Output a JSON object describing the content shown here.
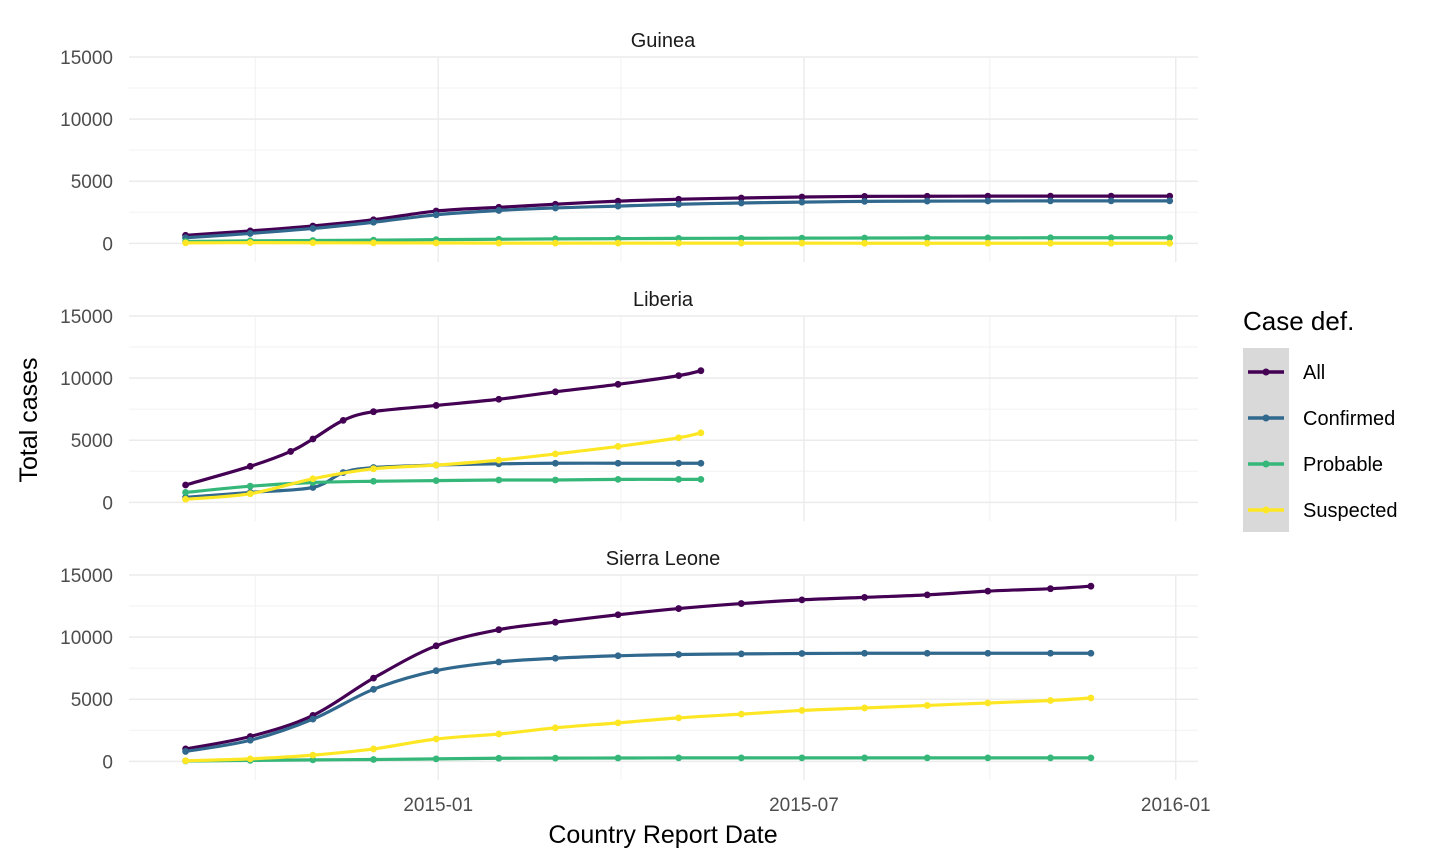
{
  "chart_data": {
    "type": "line",
    "xlabel": "Country Report Date",
    "ylabel": "Total cases",
    "xlim": [
      "2014-08-01",
      "2016-01-12"
    ],
    "x_ticks": [
      "2015-01-01",
      "2015-07-01",
      "2016-01-01"
    ],
    "x_tick_labels": [
      "2015-01",
      "2015-07",
      "2016-01"
    ],
    "ylim": [
      -1500,
      15000
    ],
    "y_ticks": [
      0,
      5000,
      10000,
      15000
    ],
    "y_tick_labels": [
      "0",
      "5000",
      "10000",
      "15000"
    ],
    "grid": true,
    "legend": {
      "title": "Case def.",
      "position": "right",
      "entries": [
        "All",
        "Confirmed",
        "Probable",
        "Suspected"
      ]
    },
    "series_colors": {
      "All": "#440154",
      "Confirmed": "#31688e",
      "Probable": "#35b779",
      "Suspected": "#fde725"
    },
    "legend_key_background": "#d9d9d9",
    "panels": [
      {
        "title": "Guinea",
        "series": [
          {
            "name": "All",
            "x": [
              "2014-08-29",
              "2014-09-30",
              "2014-10-31",
              "2014-11-30",
              "2014-12-31",
              "2015-01-31",
              "2015-02-28",
              "2015-03-31",
              "2015-04-30",
              "2015-05-31",
              "2015-06-30",
              "2015-07-31",
              "2015-08-31",
              "2015-09-30",
              "2015-10-31",
              "2015-11-30",
              "2015-12-29"
            ],
            "y": [
              650,
              1000,
              1400,
              1900,
              2600,
              2900,
              3150,
              3400,
              3550,
              3650,
              3730,
              3780,
              3790,
              3800,
              3800,
              3800,
              3800
            ]
          },
          {
            "name": "Confirmed",
            "x": [
              "2014-08-29",
              "2014-09-30",
              "2014-10-31",
              "2014-11-30",
              "2014-12-31",
              "2015-01-31",
              "2015-02-28",
              "2015-03-31",
              "2015-04-30",
              "2015-05-31",
              "2015-06-30",
              "2015-07-31",
              "2015-08-31",
              "2015-09-30",
              "2015-10-31",
              "2015-11-30",
              "2015-12-29"
            ],
            "y": [
              450,
              800,
              1200,
              1700,
              2300,
              2650,
              2850,
              3000,
              3150,
              3250,
              3320,
              3380,
              3400,
              3410,
              3420,
              3420,
              3420
            ]
          },
          {
            "name": "Probable",
            "x": [
              "2014-08-29",
              "2014-09-30",
              "2014-10-31",
              "2014-11-30",
              "2014-12-31",
              "2015-01-31",
              "2015-02-28",
              "2015-03-31",
              "2015-04-30",
              "2015-05-31",
              "2015-06-30",
              "2015-07-31",
              "2015-08-31",
              "2015-09-30",
              "2015-10-31",
              "2015-11-30",
              "2015-12-29"
            ],
            "y": [
              150,
              200,
              230,
              260,
              300,
              330,
              360,
              380,
              400,
              410,
              420,
              430,
              440,
              440,
              450,
              450,
              450
            ]
          },
          {
            "name": "Suspected",
            "x": [
              "2014-08-29",
              "2014-09-30",
              "2014-10-31",
              "2014-11-30",
              "2014-12-31",
              "2015-01-31",
              "2015-02-28",
              "2015-03-31",
              "2015-04-30",
              "2015-05-31",
              "2015-06-30",
              "2015-07-31",
              "2015-08-31",
              "2015-09-30",
              "2015-10-31",
              "2015-11-30",
              "2015-12-29"
            ],
            "y": [
              40,
              60,
              50,
              40,
              30,
              20,
              20,
              20,
              20,
              20,
              20,
              10,
              10,
              10,
              10,
              10,
              10
            ]
          }
        ]
      },
      {
        "title": "Liberia",
        "series": [
          {
            "name": "All",
            "x": [
              "2014-08-29",
              "2014-09-30",
              "2014-10-20",
              "2014-10-31",
              "2014-11-15",
              "2014-11-30",
              "2014-12-31",
              "2015-01-31",
              "2015-02-28",
              "2015-03-31",
              "2015-04-30",
              "2015-05-11"
            ],
            "y": [
              1400,
              2900,
              4100,
              5100,
              6600,
              7300,
              7800,
              8300,
              8900,
              9500,
              10200,
              10600
            ]
          },
          {
            "name": "Confirmed",
            "x": [
              "2014-08-29",
              "2014-09-30",
              "2014-10-31",
              "2014-11-15",
              "2014-11-30",
              "2014-12-31",
              "2015-01-31",
              "2015-02-28",
              "2015-03-31",
              "2015-04-30",
              "2015-05-11"
            ],
            "y": [
              400,
              800,
              1200,
              2400,
              2800,
              3000,
              3100,
              3150,
              3150,
              3150,
              3150
            ]
          },
          {
            "name": "Probable",
            "x": [
              "2014-08-29",
              "2014-09-30",
              "2014-10-31",
              "2014-11-30",
              "2014-12-31",
              "2015-01-31",
              "2015-02-28",
              "2015-03-31",
              "2015-04-30",
              "2015-05-11"
            ],
            "y": [
              800,
              1300,
              1600,
              1700,
              1750,
              1800,
              1800,
              1850,
              1850,
              1850
            ]
          },
          {
            "name": "Suspected",
            "x": [
              "2014-08-29",
              "2014-09-30",
              "2014-10-31",
              "2014-11-30",
              "2014-12-31",
              "2015-01-31",
              "2015-02-28",
              "2015-03-31",
              "2015-04-30",
              "2015-05-11"
            ],
            "y": [
              250,
              700,
              1900,
              2700,
              3000,
              3400,
              3900,
              4500,
              5200,
              5600
            ]
          }
        ]
      },
      {
        "title": "Sierra Leone",
        "series": [
          {
            "name": "All",
            "x": [
              "2014-08-29",
              "2014-09-30",
              "2014-10-31",
              "2014-11-30",
              "2014-12-31",
              "2015-01-31",
              "2015-02-28",
              "2015-03-31",
              "2015-04-30",
              "2015-05-31",
              "2015-06-30",
              "2015-07-31",
              "2015-08-31",
              "2015-09-30",
              "2015-10-31",
              "2015-11-20"
            ],
            "y": [
              1000,
              2000,
              3700,
              6700,
              9300,
              10600,
              11200,
              11800,
              12300,
              12700,
              13000,
              13200,
              13400,
              13700,
              13900,
              14100
            ]
          },
          {
            "name": "Confirmed",
            "x": [
              "2014-08-29",
              "2014-09-30",
              "2014-10-31",
              "2014-11-30",
              "2014-12-31",
              "2015-01-31",
              "2015-02-28",
              "2015-03-31",
              "2015-04-30",
              "2015-05-31",
              "2015-06-30",
              "2015-07-31",
              "2015-08-31",
              "2015-09-30",
              "2015-10-31",
              "2015-11-20"
            ],
            "y": [
              800,
              1700,
              3400,
              5800,
              7300,
              8000,
              8300,
              8500,
              8600,
              8650,
              8680,
              8700,
              8700,
              8700,
              8700,
              8700
            ]
          },
          {
            "name": "Probable",
            "x": [
              "2014-08-29",
              "2014-09-30",
              "2014-10-31",
              "2014-11-30",
              "2014-12-31",
              "2015-01-31",
              "2015-02-28",
              "2015-03-31",
              "2015-04-30",
              "2015-05-31",
              "2015-06-30",
              "2015-07-31",
              "2015-08-31",
              "2015-09-30",
              "2015-10-31",
              "2015-11-20"
            ],
            "y": [
              30,
              80,
              120,
              150,
              200,
              250,
              260,
              270,
              280,
              280,
              280,
              280,
              280,
              280,
              280,
              280
            ]
          },
          {
            "name": "Suspected",
            "x": [
              "2014-08-29",
              "2014-09-30",
              "2014-10-31",
              "2014-11-30",
              "2014-12-31",
              "2015-01-31",
              "2015-02-28",
              "2015-03-31",
              "2015-04-30",
              "2015-05-31",
              "2015-06-30",
              "2015-07-31",
              "2015-08-31",
              "2015-09-30",
              "2015-10-31",
              "2015-11-20"
            ],
            "y": [
              50,
              200,
              500,
              1000,
              1800,
              2200,
              2700,
              3100,
              3500,
              3800,
              4100,
              4300,
              4500,
              4700,
              4900,
              5100
            ]
          }
        ]
      }
    ]
  }
}
